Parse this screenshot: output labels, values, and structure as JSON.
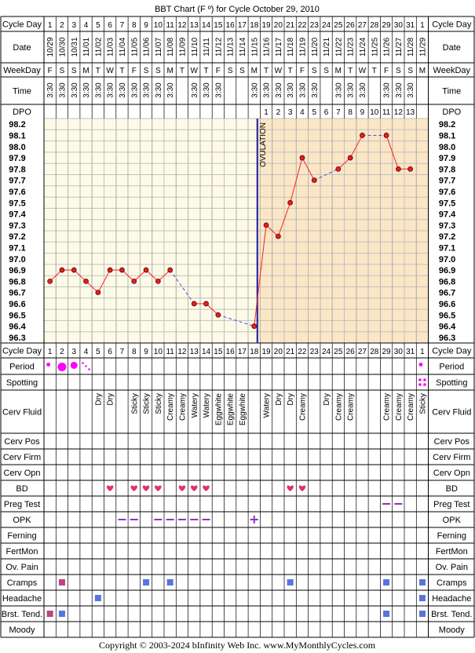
{
  "title": "BBT Chart (F º) for Cycle October 29, 2010",
  "copyright": "Copyright © 2003-2024 bInfinity Web Inc.    www.MyMonthlyCycles.com",
  "ovulation_label": "OVULATION",
  "row_labels": {
    "cycle_day": "Cycle Day",
    "date": "Date",
    "weekday": "WeekDay",
    "time": "Time",
    "dpo": "DPO",
    "period": "Period",
    "spotting": "Spotting",
    "cerv_fluid": "Cerv Fluid",
    "cerv_pos": "Cerv Pos",
    "cerv_firm": "Cerv Firm",
    "cerv_opn": "Cerv Opn",
    "bd": "BD",
    "preg_test": "Preg Test",
    "opk": "OPK",
    "ferning": "Ferning",
    "fertmon": "FertMon",
    "ov_pain": "Ov. Pain",
    "cramps": "Cramps",
    "headache": "Headache",
    "brst_tend": "Brst. Tend.",
    "moody": "Moody"
  },
  "colors": {
    "pre_bg": "#fdfbe8",
    "post_bg": "#fbe7c6",
    "grid": "#c0c0c0",
    "line": "#ff2020",
    "dot": "#e02020",
    "ovulation": "#1a1aa0",
    "dash": "#4050e0",
    "period": "#ff00ff",
    "heart": "#e0306e",
    "opk": "#9030c0",
    "square_blue": "#5577dd",
    "square_pink": "#bb4488"
  },
  "days": [
    "1",
    "2",
    "3",
    "4",
    "5",
    "6",
    "7",
    "8",
    "9",
    "10",
    "11",
    "12",
    "13",
    "14",
    "15",
    "16",
    "17",
    "18",
    "19",
    "20",
    "21",
    "22",
    "23",
    "24",
    "25",
    "26",
    "27",
    "28",
    "29",
    "30",
    "31",
    "1"
  ],
  "dates": [
    "10/29",
    "10/30",
    "10/31",
    "11/01",
    "11/02",
    "11/03",
    "11/04",
    "11/05",
    "11/06",
    "11/07",
    "11/08",
    "11/09",
    "11/10",
    "11/11",
    "11/12",
    "11/13",
    "11/14",
    "11/15",
    "11/16",
    "11/17",
    "11/18",
    "11/19",
    "11/20",
    "11/21",
    "11/22",
    "11/23",
    "11/24",
    "11/25",
    "11/26",
    "11/27",
    "11/28",
    "11/29"
  ],
  "weekdays": [
    "F",
    "S",
    "S",
    "M",
    "T",
    "W",
    "T",
    "F",
    "S",
    "S",
    "M",
    "T",
    "W",
    "T",
    "F",
    "S",
    "S",
    "M",
    "T",
    "W",
    "T",
    "F",
    "S",
    "S",
    "M",
    "T",
    "W",
    "T",
    "F",
    "S",
    "S",
    "M"
  ],
  "times": [
    "3:30",
    "3:30",
    "3:30",
    "3:30",
    "3:30",
    "3:30",
    "3:30",
    "3:30",
    "3:30",
    "3:30",
    "3:30",
    "",
    "3:30",
    "3:30",
    "3:30",
    "",
    "",
    "3:30",
    "3:30",
    "3:30",
    "3:30",
    "3:30",
    "3:30",
    "",
    "3:30",
    "3:30",
    "3:30",
    "",
    "3:30",
    "3:30",
    "3:30",
    ""
  ],
  "dpo": [
    "",
    "",
    "",
    "",
    "",
    "",
    "",
    "",
    "",
    "",
    "",
    "",
    "",
    "",
    "",
    "",
    "",
    "",
    "1",
    "2",
    "3",
    "4",
    "5",
    "6",
    "7",
    "8",
    "9",
    "10",
    "11",
    "12",
    "13",
    ""
  ],
  "cerv_fluid": [
    "",
    "",
    "",
    "",
    "Dry",
    "Dry",
    "",
    "Sticky",
    "Sticky",
    "Sticky",
    "Creamy",
    "Creamy",
    "Watery",
    "Watery",
    "Eggwhite",
    "Eggwhite",
    "Eggwhite",
    "",
    "Watery",
    "Dry",
    "Dry",
    "Creamy",
    "",
    "Dry",
    "Creamy",
    "Creamy",
    "",
    "",
    "Creamy",
    "Creamy",
    "Creamy",
    "Sticky"
  ],
  "period": [
    "dot-small",
    "dot-large",
    "dot-medium",
    "spots",
    "",
    "",
    "",
    "",
    "",
    "",
    "",
    "",
    "",
    "",
    "",
    "",
    "",
    "",
    "",
    "",
    "",
    "",
    "",
    "",
    "",
    "",
    "",
    "",
    "",
    "",
    "",
    "dot-small"
  ],
  "spotting": [
    "",
    "",
    "",
    "",
    "",
    "",
    "",
    "",
    "",
    "",
    "",
    "",
    "",
    "",
    "",
    "",
    "",
    "",
    "",
    "",
    "",
    "",
    "",
    "",
    "",
    "",
    "",
    "",
    "",
    "",
    "",
    "spots"
  ],
  "bd": [
    6,
    8,
    9,
    10,
    12,
    13,
    14,
    21,
    22
  ],
  "preg_test": [
    29,
    30
  ],
  "opk": {
    "negative": [
      7,
      8,
      10,
      11,
      12,
      13,
      14
    ],
    "positive": [
      18
    ]
  },
  "cramps": [
    {
      "day": 2,
      "color": "pink"
    },
    {
      "day": 9,
      "color": "blue"
    },
    {
      "day": 11,
      "color": "blue"
    },
    {
      "day": 21,
      "color": "blue"
    },
    {
      "day": 29,
      "color": "blue"
    },
    {
      "day": 32,
      "color": "blue"
    }
  ],
  "headache": [
    {
      "day": 5,
      "color": "blue"
    },
    {
      "day": 32,
      "color": "blue"
    }
  ],
  "brst_tend": [
    {
      "day": 1,
      "color": "pink"
    },
    {
      "day": 2,
      "color": "blue"
    },
    {
      "day": 29,
      "color": "blue"
    },
    {
      "day": 32,
      "color": "blue"
    }
  ],
  "chart_data": {
    "type": "line",
    "title": "BBT Chart (F º) for Cycle October 29, 2010",
    "xlabel": "Cycle Day",
    "ylabel": "",
    "ylim": [
      96.3,
      98.2
    ],
    "y_ticks": [
      "98.2",
      "98.1",
      "98.0",
      "97.9",
      "97.8",
      "97.7",
      "97.6",
      "97.5",
      "97.4",
      "97.3",
      "97.2",
      "97.1",
      "97.0",
      "96.9",
      "96.8",
      "96.7",
      "96.6",
      "96.5",
      "96.4",
      "96.3"
    ],
    "ovulation_day": 18,
    "coverline": false,
    "x": [
      1,
      2,
      3,
      4,
      5,
      6,
      7,
      8,
      9,
      10,
      11,
      12,
      13,
      14,
      15,
      16,
      17,
      18,
      19,
      20,
      21,
      22,
      23,
      24,
      25,
      26,
      27,
      28,
      29,
      30,
      31,
      32
    ],
    "temps": [
      96.8,
      96.9,
      96.9,
      96.8,
      96.7,
      96.9,
      96.9,
      96.8,
      96.9,
      96.8,
      96.9,
      null,
      96.6,
      96.6,
      96.5,
      null,
      null,
      96.4,
      97.3,
      97.2,
      97.5,
      97.9,
      97.7,
      null,
      97.8,
      97.9,
      98.1,
      null,
      98.1,
      97.8,
      97.8,
      null
    ]
  }
}
